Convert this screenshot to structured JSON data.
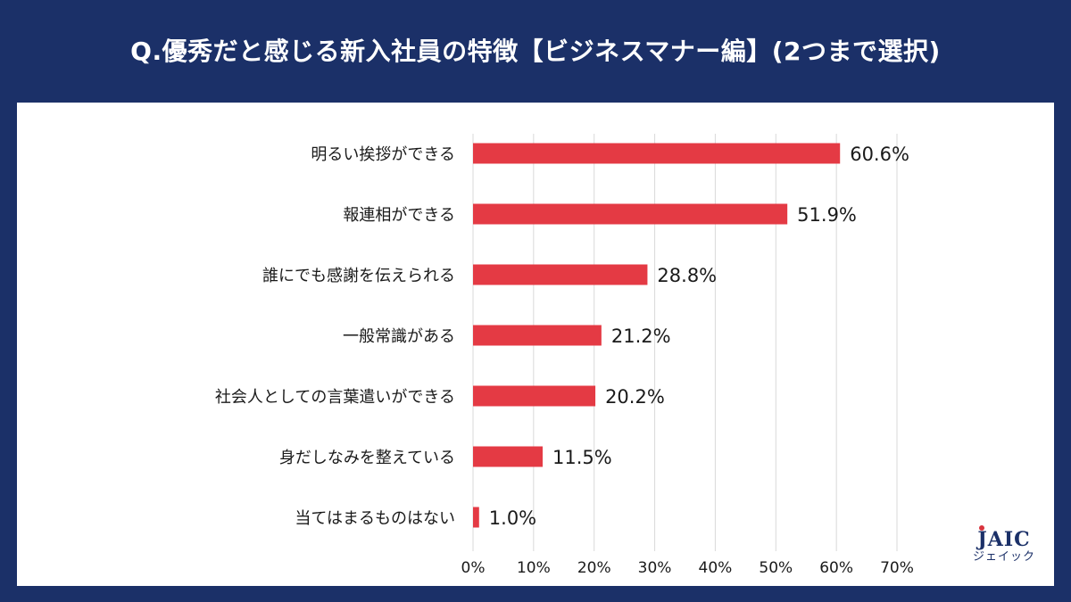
{
  "title": "Q.優秀だと感じる新入社員の特徴【ビジネスマナー編】(2つまで選択)",
  "colors": {
    "background": "#1b3068",
    "panel": "#ffffff",
    "bar": "#e43a44",
    "grid": "#d9d9d9",
    "text": "#1a1a1a"
  },
  "chart_data": {
    "type": "bar",
    "orientation": "horizontal",
    "categories": [
      "明るい挨拶ができる",
      "報連相ができる",
      "誰にでも感謝を伝えられる",
      "一般常識がある",
      "社会人としての言葉遣いができる",
      "身だしなみを整えている",
      "当てはまるものはない"
    ],
    "values": [
      60.6,
      51.9,
      28.8,
      21.2,
      20.2,
      11.5,
      1.0
    ],
    "value_labels": [
      "60.6%",
      "51.9%",
      "28.8%",
      "21.2%",
      "20.2%",
      "11.5%",
      "1.0%"
    ],
    "xticks": [
      "0%",
      "10%",
      "20%",
      "30%",
      "40%",
      "50%",
      "60%",
      "70%"
    ],
    "xlim": [
      0,
      70
    ],
    "grid": true
  },
  "logo": {
    "main": "JAIC",
    "sub": "ジェイック"
  }
}
